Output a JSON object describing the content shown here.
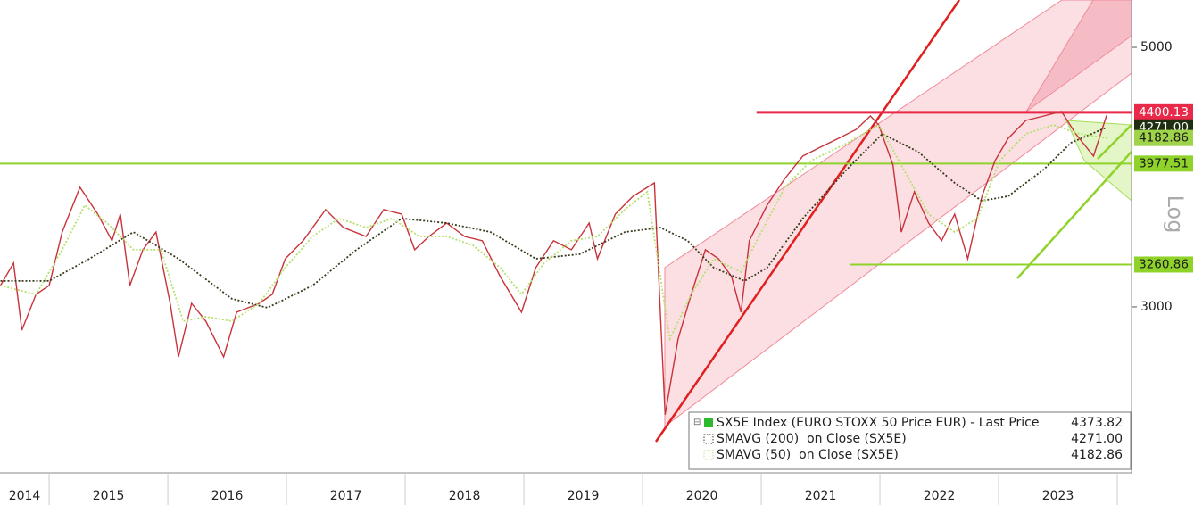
{
  "chart_data": {
    "type": "line",
    "log_scale": true,
    "axis_label": "Log",
    "xlim": [
      2014.586,
      2024.12
    ],
    "ylim": [
      2164,
      5488
    ],
    "xticks": [
      2015,
      2016,
      2017,
      2018,
      2019,
      2020,
      2021,
      2022,
      2023,
      2024
    ],
    "year_labels": [
      "2014",
      "2015",
      "2016",
      "2017",
      "2018",
      "2019",
      "2020",
      "2021",
      "2022",
      "2023"
    ],
    "yticks": [
      3000,
      5000
    ],
    "series": [
      {
        "name": "SX5E Index (EURO STOXX 50 Price EUR) - Last Price",
        "color": "#2eb82e",
        "line_color": "#c8323a",
        "style": "solid",
        "x": [
          2014.59,
          2014.7,
          2014.77,
          2014.89,
          2015.0,
          2015.11,
          2015.26,
          2015.41,
          2015.53,
          2015.6,
          2015.68,
          2015.79,
          2015.9,
          2016.02,
          2016.09,
          2016.2,
          2016.32,
          2016.47,
          2016.58,
          2016.77,
          2016.88,
          2016.99,
          2017.14,
          2017.33,
          2017.48,
          2017.67,
          2017.82,
          2017.97,
          2018.08,
          2018.2,
          2018.35,
          2018.5,
          2018.65,
          2018.8,
          2018.98,
          2019.1,
          2019.25,
          2019.4,
          2019.55,
          2019.62,
          2019.77,
          2019.92,
          2020.1,
          2020.19,
          2020.3,
          2020.41,
          2020.53,
          2020.64,
          2020.75,
          2020.83,
          2020.9,
          2021.05,
          2021.2,
          2021.35,
          2021.5,
          2021.65,
          2021.8,
          2021.92,
          2021.99,
          2022.11,
          2022.18,
          2022.29,
          2022.41,
          2022.52,
          2022.63,
          2022.74,
          2022.86,
          2022.97,
          2023.08,
          2023.23,
          2023.38,
          2023.53,
          2023.65,
          2023.8,
          2023.91
        ],
        "values": [
          3129,
          3270,
          2866,
          3075,
          3129,
          3476,
          3796,
          3601,
          3417,
          3601,
          3129,
          3357,
          3476,
          3021,
          2719,
          3021,
          2917,
          2719,
          2969,
          3021,
          3075,
          3298,
          3417,
          3633,
          3507,
          3446,
          3633,
          3601,
          3357,
          3446,
          3538,
          3446,
          3417,
          3185,
          2969,
          3241,
          3417,
          3357,
          3538,
          3298,
          3601,
          3730,
          3829,
          2426,
          2817,
          3075,
          3357,
          3298,
          3185,
          2969,
          3417,
          3665,
          3863,
          4037,
          4108,
          4180,
          4254,
          4368,
          4292,
          3966,
          3476,
          3763,
          3538,
          3417,
          3601,
          3298,
          3730,
          4001,
          4180,
          4330,
          4368,
          4407,
          4217,
          4037,
          4373.82
        ]
      },
      {
        "name": "SMAVG (200)  on Close (SX5E)",
        "color": "#3a3a1c",
        "style": "dotted",
        "x": [
          2014.59,
          2015.0,
          2015.34,
          2015.71,
          2016.09,
          2016.54,
          2016.84,
          2017.22,
          2017.59,
          2017.97,
          2018.35,
          2018.72,
          2019.1,
          2019.47,
          2019.85,
          2020.15,
          2020.38,
          2020.6,
          2020.86,
          2021.05,
          2021.35,
          2021.72,
          2022.02,
          2022.32,
          2022.63,
          2022.86,
          2023.08,
          2023.38,
          2023.61,
          2023.91
        ],
        "values": [
          3157,
          3157,
          3298,
          3476,
          3298,
          3048,
          2995,
          3129,
          3357,
          3570,
          3538,
          3476,
          3298,
          3328,
          3476,
          3507,
          3417,
          3241,
          3157,
          3241,
          3570,
          3931,
          4217,
          4072,
          3829,
          3697,
          3730,
          3931,
          4144,
          4271
        ],
        "last_label": "4271.00",
        "box_color": "#1f2e10",
        "box_text": "#ffffff"
      },
      {
        "name": "SMAVG (50)  on Close (SX5E)",
        "color": "#b5e06a",
        "style": "dotted",
        "x": [
          2014.59,
          2014.89,
          2015.11,
          2015.3,
          2015.49,
          2015.71,
          2015.94,
          2016.13,
          2016.32,
          2016.54,
          2016.77,
          2016.99,
          2017.22,
          2017.44,
          2017.67,
          2017.89,
          2018.12,
          2018.35,
          2018.57,
          2018.8,
          2018.98,
          2019.17,
          2019.4,
          2019.62,
          2019.85,
          2020.04,
          2020.23,
          2020.41,
          2020.6,
          2020.83,
          2020.98,
          2021.2,
          2021.42,
          2021.73,
          2021.99,
          2022.18,
          2022.41,
          2022.63,
          2022.82,
          2023.01,
          2023.23,
          2023.46,
          2023.68,
          2023.91
        ],
        "values": [
          3129,
          3075,
          3357,
          3665,
          3538,
          3357,
          3357,
          2917,
          2943,
          2917,
          3021,
          3241,
          3446,
          3570,
          3507,
          3570,
          3446,
          3446,
          3387,
          3241,
          3075,
          3270,
          3417,
          3446,
          3633,
          3763,
          2817,
          3075,
          3298,
          3213,
          3446,
          3796,
          4001,
          4144,
          4292,
          3966,
          3601,
          3476,
          3570,
          4001,
          4217,
          4292,
          4217,
          4182.86
        ],
        "box_color": "#9fd34a",
        "box_text": "#1a1a1a"
      }
    ],
    "levels": [
      {
        "value": 4400.13,
        "from": 2020.96,
        "color": "#e8294a",
        "text_color": "#ffffff"
      },
      {
        "value": 3977.51,
        "from": 2014.586,
        "color": "#8fd32a",
        "text_color": "#1a1a1a"
      },
      {
        "value": 3260.86,
        "from": 2021.75,
        "color": "#8fd32a",
        "text_color": "#1a1a1a"
      }
    ]
  }
}
